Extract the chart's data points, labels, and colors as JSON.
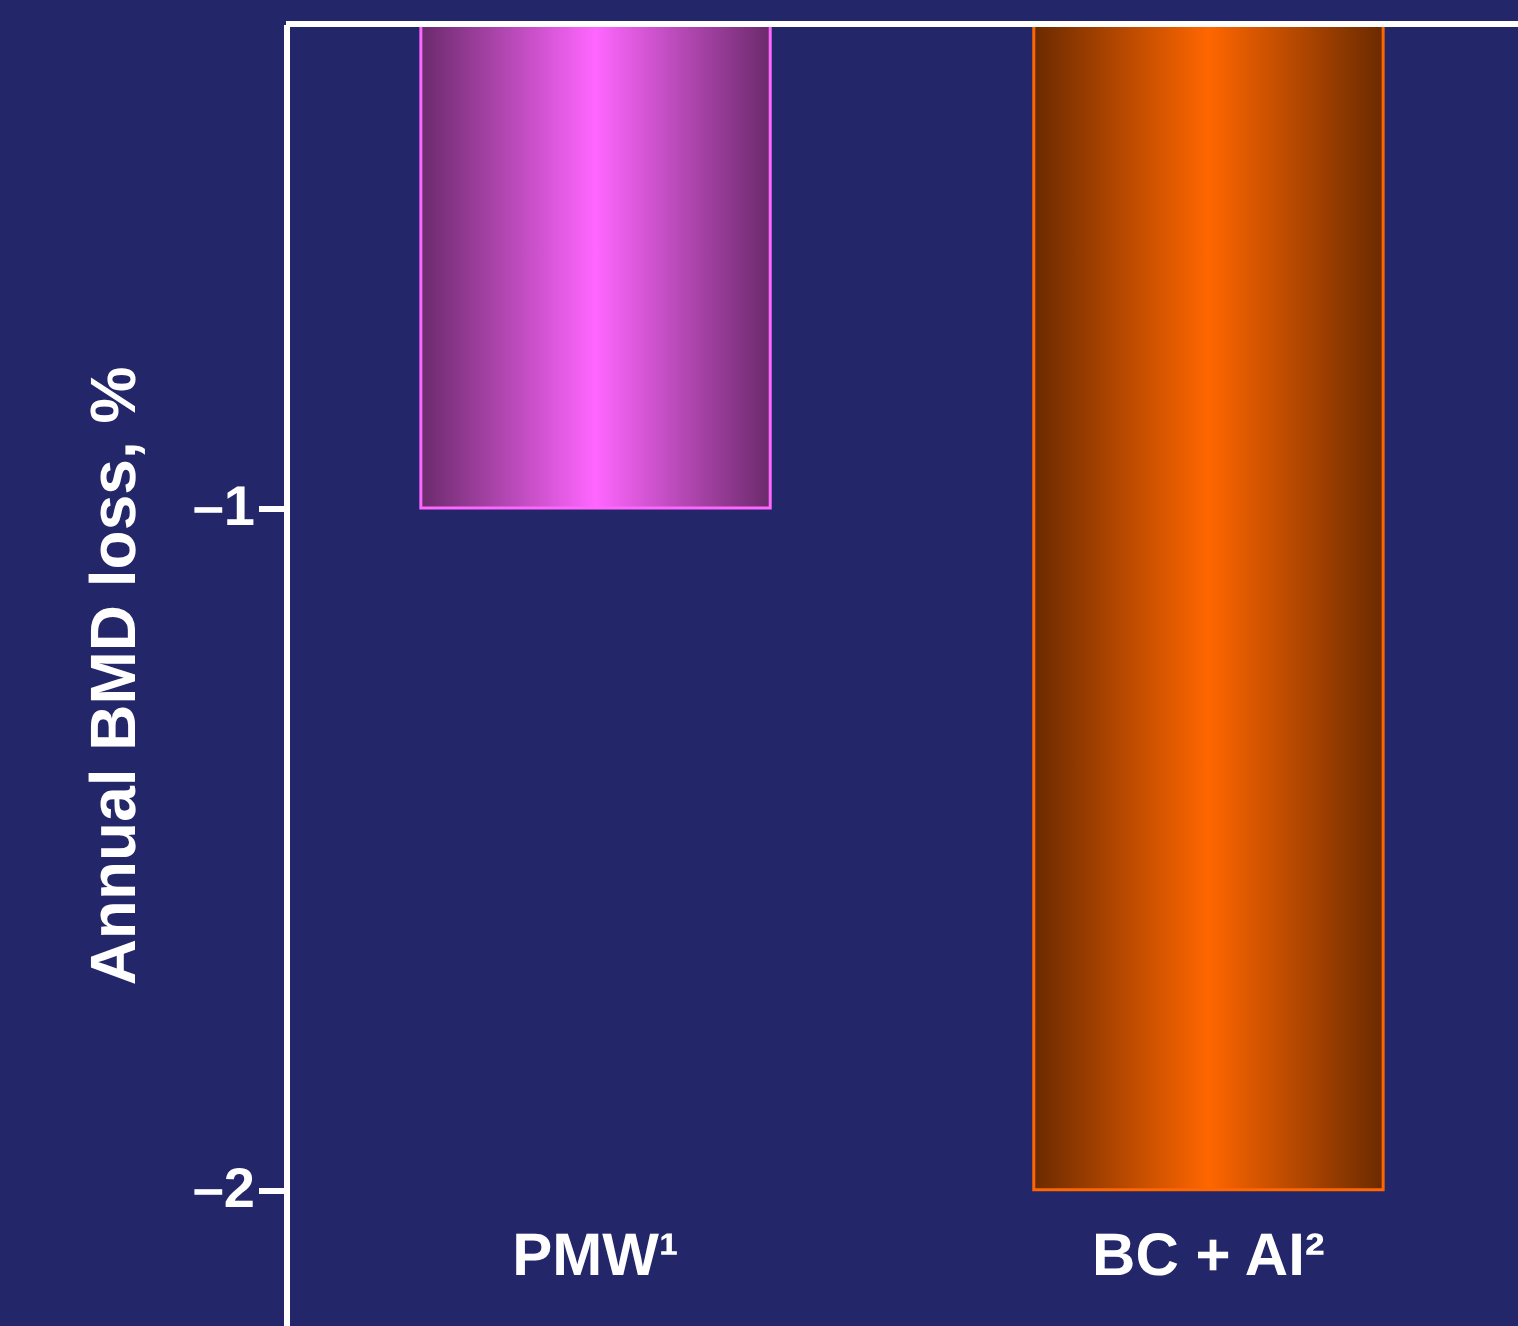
{
  "chart_data": {
    "type": "bar",
    "ylabel": "Annual BMD loss, %",
    "categories": [
      "PMW¹",
      "BC + AI²"
    ],
    "values": [
      -1,
      -2
    ],
    "colors": [
      "#ff66ff",
      "#ff6600"
    ],
    "ylim": [
      -2.2,
      -0.29
    ],
    "yticks": [
      {
        "value": -1,
        "label": "–1"
      },
      {
        "value": -2,
        "label": "–2"
      }
    ],
    "grid": false
  }
}
